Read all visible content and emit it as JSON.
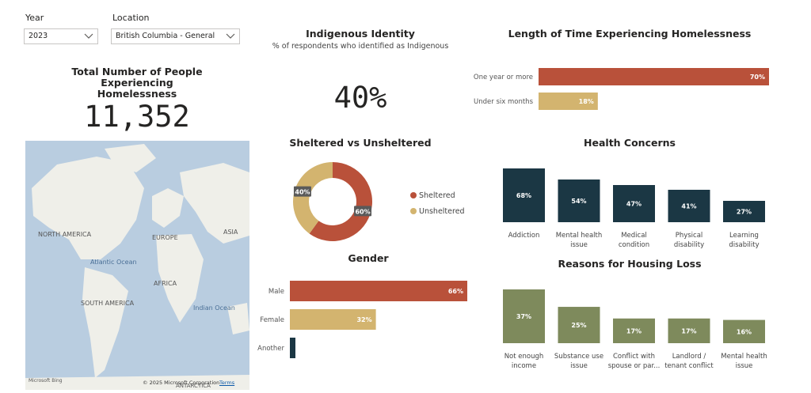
{
  "filters": {
    "year": {
      "label": "Year",
      "value": "2023"
    },
    "location": {
      "label": "Location",
      "value": "British Columbia - General"
    }
  },
  "total": {
    "title_lines": [
      "Total Number of People",
      "Experiencing",
      "Homelessness"
    ],
    "value": "11,352"
  },
  "map": {
    "labels": {
      "north_america": "NORTH AMERICA",
      "europe": "EUROPE",
      "asia": "ASIA",
      "atlantic": "Atlantic Ocean",
      "africa": "AFRICA",
      "south_america": "SOUTH AMERICA",
      "indian": "Indian Ocean",
      "antarctica": "ANTARCTICA"
    },
    "attribution": "© 2025 Microsoft Corporation",
    "terms": "Terms",
    "logo": "Microsoft Bing"
  },
  "indigenous": {
    "title": "Indigenous Identity",
    "subtitle": "% of respondents who identified as Indigenous",
    "value": "40%"
  },
  "colors": {
    "rust": "#b9513a",
    "sand": "#d3b46f",
    "navy": "#1b3744",
    "olive": "#7e8a5c"
  },
  "charts": {
    "length": {
      "title": "Length of Time Experiencing Homelessness",
      "chart_data": {
        "type": "bar",
        "orientation": "horizontal",
        "categories": [
          "One year or more",
          "Under six months"
        ],
        "values": [
          70,
          18
        ],
        "labels": [
          "70%",
          "18%"
        ],
        "colors": [
          "#b9513a",
          "#d3b46f"
        ],
        "xlim": [
          0,
          70
        ]
      }
    },
    "sheltered": {
      "title": "Sheltered vs Unsheltered",
      "chart_data": {
        "type": "pie",
        "donut": true,
        "categories": [
          "Sheltered",
          "Unsheltered"
        ],
        "values": [
          60,
          40
        ],
        "labels": [
          "60%",
          "40%"
        ],
        "colors": [
          "#b9513a",
          "#d3b46f"
        ],
        "legend": "right"
      }
    },
    "gender": {
      "title": "Gender",
      "chart_data": {
        "type": "bar",
        "orientation": "horizontal",
        "categories": [
          "Male",
          "Female",
          "Another"
        ],
        "values": [
          66,
          32,
          2
        ],
        "labels": [
          "66%",
          "32%",
          ""
        ],
        "colors": [
          "#b9513a",
          "#d3b46f",
          "#1b3744"
        ],
        "xlim": [
          0,
          66
        ]
      }
    },
    "health": {
      "title": "Health Concerns",
      "chart_data": {
        "type": "bar",
        "categories": [
          "Addiction",
          "Mental health issue",
          "Medical condition",
          "Physical disability",
          "Learning disability"
        ],
        "category_lines": [
          [
            "Addiction"
          ],
          [
            "Mental health",
            "issue"
          ],
          [
            "Medical",
            "condition"
          ],
          [
            "Physical",
            "disability"
          ],
          [
            "Learning",
            "disability"
          ]
        ],
        "values": [
          68,
          54,
          47,
          41,
          27
        ],
        "labels": [
          "68%",
          "54%",
          "47%",
          "41%",
          "27%"
        ],
        "color": "#1b3744",
        "ylim": [
          0,
          68
        ]
      }
    },
    "reasons": {
      "title": "Reasons for Housing Loss",
      "chart_data": {
        "type": "bar",
        "categories": [
          "Not enough income",
          "Substance use issue",
          "Conflict with spouse or par...",
          "Landlord / tenant conflict",
          "Mental health issue"
        ],
        "category_lines": [
          [
            "Not enough",
            "income"
          ],
          [
            "Substance use",
            "issue"
          ],
          [
            "Conflict with",
            "spouse or par..."
          ],
          [
            "Landlord /",
            "tenant conflict"
          ],
          [
            "Mental health",
            "issue"
          ]
        ],
        "values": [
          37,
          25,
          17,
          17,
          16
        ],
        "labels": [
          "37%",
          "25%",
          "17%",
          "17%",
          "16%"
        ],
        "color": "#7e8a5c",
        "ylim": [
          0,
          37
        ]
      }
    }
  }
}
